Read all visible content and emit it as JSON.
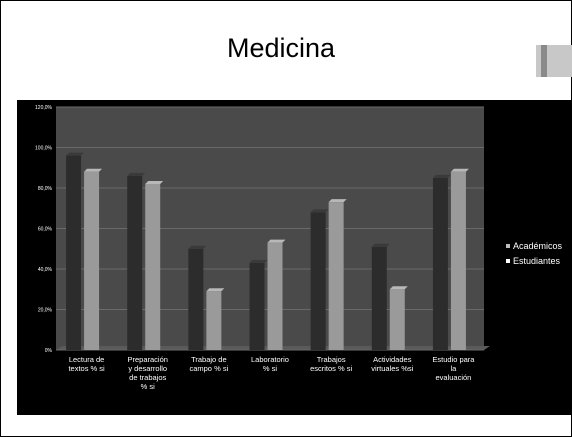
{
  "slide": {
    "title": "Medicina"
  },
  "colors": {
    "background": "#000000",
    "plot_area": "#4a4a4a",
    "academicos": "#2c2c2c",
    "estudiantes": "#9a9a9a",
    "text": "#ffffff"
  },
  "chart_data": {
    "type": "bar",
    "title": "",
    "xlabel": "",
    "ylabel": "",
    "ylim": [
      0,
      120
    ],
    "yticks": [
      "0%",
      "20,0%",
      "40,0%",
      "60,0%",
      "80,0%",
      "100,0%",
      "120,0%"
    ],
    "categories": [
      [
        "Lectura de",
        "textos % si"
      ],
      [
        "Preparación",
        "y desarrollo",
        "de trabajos",
        "% si"
      ],
      [
        "Trabajo de",
        "campo % si"
      ],
      [
        "Laboratorio",
        "% si"
      ],
      [
        "Trabajos",
        "escritos % si"
      ],
      [
        "Actividades",
        "virtuales %si"
      ],
      [
        "Estudio para",
        "la",
        "evaluación"
      ]
    ],
    "series": [
      {
        "name": "Académicos",
        "values": [
          96,
          86,
          50,
          43,
          68,
          51,
          85
        ]
      },
      {
        "name": "Estudiantes",
        "values": [
          88,
          82,
          29,
          53,
          73,
          30,
          88
        ]
      }
    ],
    "grid": true,
    "legend_position": "right"
  }
}
